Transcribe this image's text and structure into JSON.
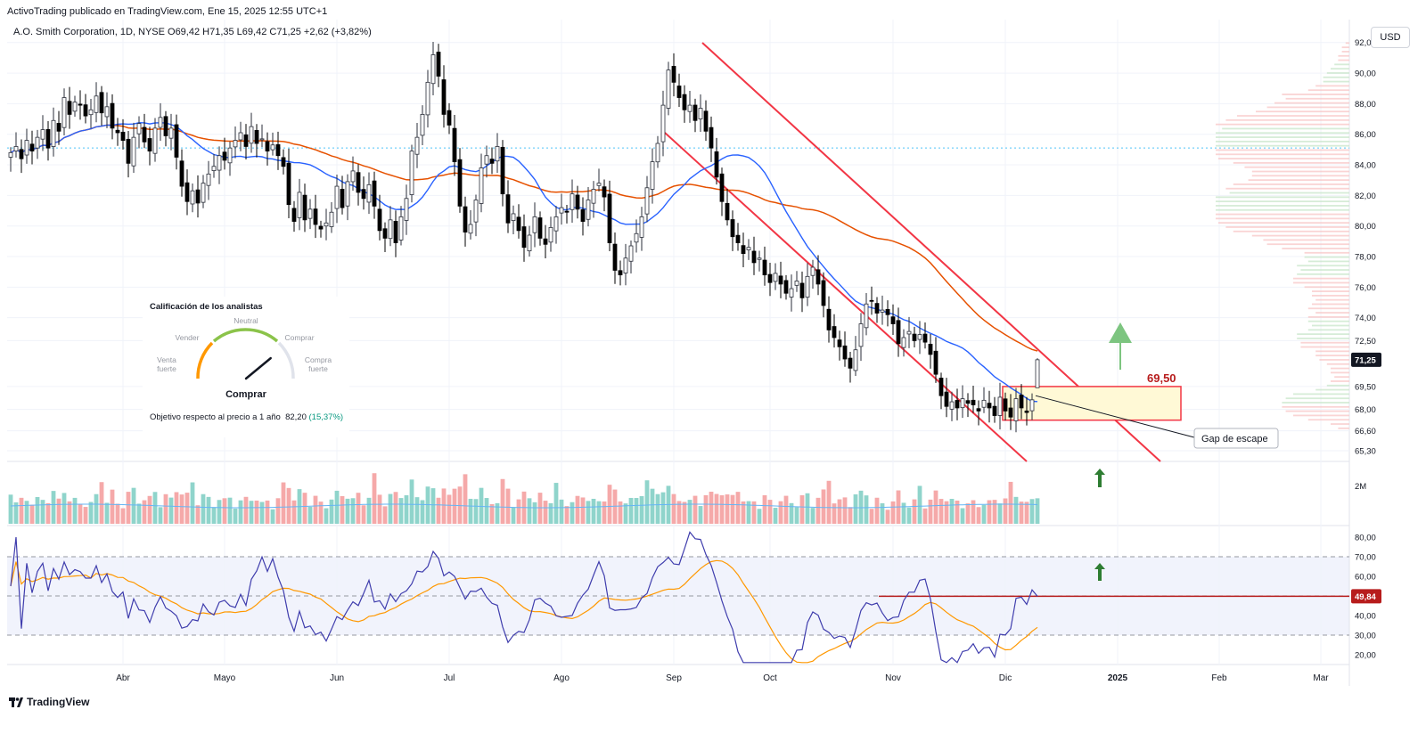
{
  "header": {
    "publisher": "ActivoTrading publicado en TradingView.com, Ene 15, 2025 12:55 UTC+1",
    "symbol_line": "A.O. Smith Corporation, 1D, NYSE  O69,42  H71,35  L69,42  C71,25  +2,62 (+3,82%)",
    "currency_button": "USD"
  },
  "widget": {
    "title": "Calificación de los analistas",
    "labels": {
      "neutral": "Neutral",
      "sell": "Vender",
      "buy": "Comprar",
      "strong_sell": "Venta\nfuerte",
      "strong_buy": "Compra\nfuerte"
    },
    "verdict": "Comprar",
    "target_label": "Objetivo respecto al precio a 1 año",
    "target_value": "82,20",
    "target_pct": "(15,37%)",
    "gauge_value": 0.78
  },
  "logo": "TradingView",
  "colors": {
    "up": "#26a69a",
    "down": "#000000",
    "ma_fast": "#2962ff",
    "ma_slow": "#e65100",
    "channel": "#f23645",
    "rsi": "#3f3dad",
    "rsi_ma": "#ff9800",
    "zone": "#fff9d6",
    "label_red": "#b71c1c",
    "arrow": "#66bb6a"
  },
  "chart_data": [
    {
      "type": "candlestick",
      "x_ticks": [
        "Abr",
        "Mayo",
        "Jun",
        "Jul",
        "Ago",
        "Sep",
        "Oct",
        "Nov",
        "Dic",
        "2025",
        "Feb",
        "Mar"
      ],
      "x_tick_index": [
        21,
        40,
        61,
        82,
        103,
        124,
        142,
        165,
        186,
        207,
        226,
        245
      ],
      "y_ticks": [
        "92,00",
        "90,00",
        "88,00",
        "86,00",
        "84,00",
        "82,00",
        "80,00",
        "78,00",
        "76,00",
        "74,00",
        "72,50",
        "69,50",
        "68,00",
        "66,60",
        "65,30"
      ],
      "y_tick_values": [
        92,
        90,
        88,
        86,
        84,
        82,
        80,
        78,
        76,
        74,
        72.5,
        69.5,
        68,
        66.6,
        65.3
      ],
      "last_price_label": "71,25",
      "last_price": 71.25,
      "ylim": [
        64.6,
        93.5
      ],
      "closes": [
        84.8,
        85.2,
        84.4,
        85.6,
        84.9,
        85.8,
        86.3,
        85.1,
        86.9,
        86.2,
        88.4,
        87.3,
        88.1,
        87.9,
        87.2,
        87.6,
        88.5,
        87.4,
        87.8,
        86.4,
        86.1,
        85.6,
        84.1,
        85.8,
        86.7,
        85.5,
        84.9,
        86.4,
        87.1,
        85.9,
        86.4,
        84.5,
        82.6,
        81.6,
        82.3,
        81.5,
        82.8,
        83.4,
        83.9,
        84.6,
        84.3,
        85.1,
        85.6,
        86.1,
        85.2,
        86.5,
        85.4,
        85.7,
        84.9,
        85.3,
        84.6,
        83.9,
        81.4,
        80.3,
        82.2,
        80.4,
        81.1,
        80.1,
        79.8,
        80.2,
        80.9,
        82.6,
        81.2,
        82.9,
        83.6,
        82.2,
        81.8,
        82.7,
        81.3,
        79.7,
        79.2,
        80.4,
        78.9,
        80.6,
        81.8,
        84.9,
        85.8,
        87.3,
        89.4,
        91.2,
        89.8,
        87.3,
        86.6,
        84.2,
        81.3,
        79.6,
        80.1,
        81.7,
        83.8,
        84.6,
        84.1,
        85.2,
        82.1,
        80.2,
        80.8,
        79.7,
        78.6,
        79.4,
        80.6,
        79.2,
        78.8,
        79.9,
        80.6,
        81.2,
        80.9,
        82.1,
        81.1,
        80.3,
        81.7,
        82.4,
        82.8,
        81.9,
        78.9,
        77.1,
        76.8,
        77.9,
        78.7,
        79.5,
        80.6,
        82.5,
        84.2,
        85.4,
        87.9,
        90.2,
        89.4,
        88.4,
        87.6,
        87.9,
        86.9,
        87.7,
        86.2,
        85.1,
        83.2,
        81.6,
        80.4,
        79.3,
        78.9,
        78.2,
        78.6,
        77.6,
        77.9,
        76.8,
        76.3,
        76.9,
        76.2,
        75.6,
        75.9,
        76.4,
        75.3,
        76.7,
        77.3,
        76.2,
        74.8,
        73.2,
        72.7,
        72.1,
        71.3,
        70.7,
        71.9,
        73.6,
        74.9,
        75.1,
        74.3,
        74.5,
        74.2,
        73.6,
        72.3,
        72.7,
        73.1,
        72.5,
        72.9,
        72.4,
        71.6,
        70.3,
        68.9,
        68.2,
        68.5,
        68.1,
        68.7,
        68.4,
        68.3,
        67.9,
        68.6,
        68.1,
        67.6,
        68.8,
        67.9,
        67.5,
        68.7,
        68.1,
        67.8,
        68.63,
        71.25
      ],
      "volume_axis_label": "2M",
      "rsi_axis_ticks": [
        "80,00",
        "70,00",
        "60,00",
        "49,84",
        "40,00",
        "30,00",
        "20,00"
      ],
      "rsi_tick_values": [
        80,
        70,
        60,
        49.84,
        40,
        30,
        20
      ],
      "rsi_last": 49.84,
      "annotations": {
        "level_label": "69,50",
        "level": 69.5,
        "zone_range": [
          67.3,
          69.5
        ],
        "callout": "Gap de escape"
      }
    }
  ]
}
